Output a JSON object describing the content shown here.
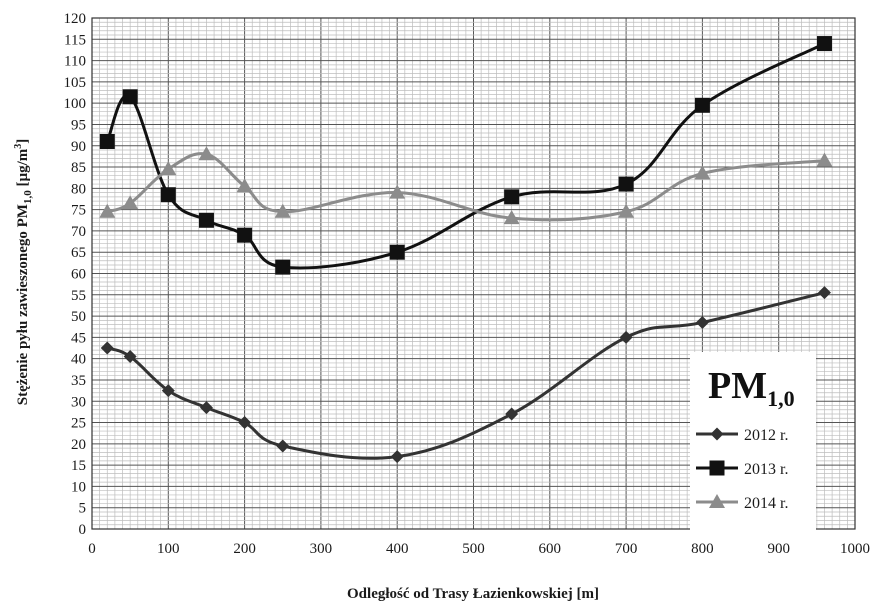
{
  "chart_data": {
    "type": "line",
    "title": "",
    "xlabel": "Odległość od Trasy Łazienkowskiej [m]",
    "ylabel": {
      "prefix": "Stężenie pyłu zawieszonego PM",
      "subscript": "1,0",
      "unit_prefix": " [µg/m",
      "superscript": "3",
      "unit_suffix": "]"
    },
    "xlim": [
      0,
      1000
    ],
    "ylim": [
      0,
      120
    ],
    "x_ticks": [
      "0",
      "100",
      "200",
      "300",
      "400",
      "500",
      "600",
      "700",
      "800",
      "900",
      "1000"
    ],
    "y_ticks": [
      "0",
      "5",
      "10",
      "15",
      "20",
      "25",
      "30",
      "35",
      "40",
      "45",
      "50",
      "55",
      "60",
      "65",
      "70",
      "75",
      "80",
      "85",
      "90",
      "95",
      "100",
      "105",
      "110",
      "115",
      "120"
    ],
    "grid": true,
    "legend": {
      "position": "bottom-right",
      "title_main": "PM",
      "title_sub": "1,0"
    },
    "series": [
      {
        "name": "2012 r.",
        "marker": "diamond",
        "color": "#333333",
        "x": [
          20,
          50,
          100,
          150,
          200,
          250,
          400,
          550,
          700,
          800,
          960
        ],
        "y": [
          42.5,
          40.5,
          32.5,
          28.5,
          25,
          19.5,
          17,
          27,
          45,
          48.5,
          55.5
        ]
      },
      {
        "name": "2013 r.",
        "marker": "square",
        "color": "#111111",
        "x": [
          20,
          50,
          100,
          150,
          200,
          250,
          400,
          550,
          700,
          800,
          960
        ],
        "y": [
          91,
          101.5,
          78.5,
          72.5,
          69,
          61.5,
          65,
          78,
          81,
          99.5,
          114
        ]
      },
      {
        "name": "2014 r.",
        "marker": "triangle",
        "color": "#8c8c8c",
        "x": [
          20,
          50,
          100,
          150,
          200,
          250,
          400,
          550,
          700,
          800,
          960
        ],
        "y": [
          74.5,
          76.5,
          84.5,
          88,
          80.5,
          74.5,
          79,
          73,
          74.5,
          83.5,
          86.5
        ]
      }
    ]
  }
}
